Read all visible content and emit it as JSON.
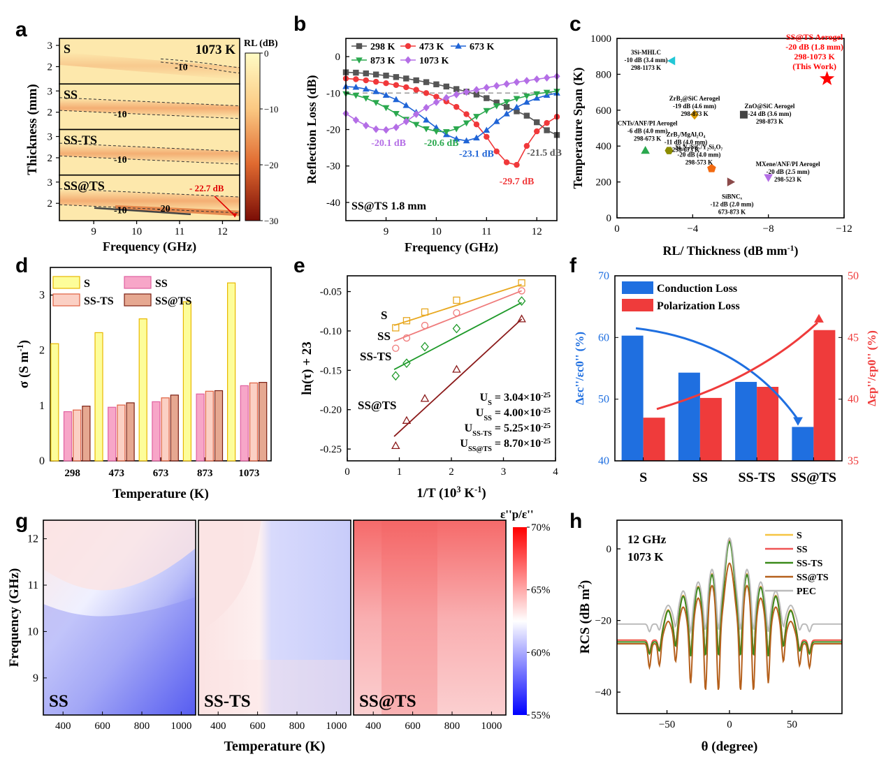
{
  "chart_data": [
    {
      "panel": "a",
      "type": "heatmap",
      "xlabel": "Frequency (GHz)",
      "ylabel": "Thickness (mm)",
      "xticks": [
        "9",
        "10",
        "11",
        "12"
      ],
      "xlim": [
        8.2,
        12.4
      ],
      "yticks": [
        "2",
        "3"
      ],
      "colorbar": {
        "title": "RL (dB)",
        "ticks": [
          "0",
          "−10",
          "−20",
          "−30"
        ],
        "range": [
          -30,
          0
        ]
      },
      "subplots": [
        {
          "name": "S",
          "corner": "1073 K",
          "contour": "-10"
        },
        {
          "name": "SS",
          "contour": "-10"
        },
        {
          "name": "SS-TS",
          "contour": "-10"
        },
        {
          "name": "SS@TS",
          "contour": "-10",
          "contour2": "-20",
          "annotation": "- 22.7 dB"
        }
      ]
    },
    {
      "panel": "b",
      "type": "line",
      "xlabel": "Frequency (GHz)",
      "ylabel": "Reflection Loss (dB)",
      "xlim": [
        8.2,
        12.4
      ],
      "ylim": [
        -45,
        5
      ],
      "xticks": [
        "9",
        "10",
        "11",
        "12"
      ],
      "yticks": [
        "0",
        "-10",
        "-20",
        "-30",
        "-40"
      ],
      "note": "SS@TS 1.8 mm",
      "x": [
        8.2,
        8.4,
        8.6,
        8.8,
        9.0,
        9.2,
        9.4,
        9.6,
        9.8,
        10.0,
        10.2,
        10.4,
        10.6,
        10.8,
        11.0,
        11.2,
        11.4,
        11.6,
        11.8,
        12.0,
        12.2,
        12.4
      ],
      "series": [
        {
          "name": "298 K",
          "color": "#555555",
          "marker": "square",
          "values": [
            -4.3,
            -4.4,
            -4.6,
            -4.9,
            -5.2,
            -5.6,
            -6.0,
            -6.5,
            -7.0,
            -7.6,
            -8.2,
            -8.9,
            -9.6,
            -10.4,
            -11.4,
            -12.6,
            -13.8,
            -15.0,
            -16.2,
            -18.0,
            -20.2,
            -21.5
          ]
        },
        {
          "name": "473 K",
          "color": "#f0383a",
          "marker": "circle",
          "values": [
            -6.0,
            -6.2,
            -6.5,
            -6.9,
            -7.3,
            -7.8,
            -8.4,
            -9.1,
            -10.0,
            -11.0,
            -12.3,
            -13.8,
            -15.8,
            -18.6,
            -22.0,
            -26.0,
            -29.0,
            -29.7,
            -24.5,
            -20.5,
            -18.2,
            -16.5
          ]
        },
        {
          "name": "673 K",
          "color": "#1f64d6",
          "marker": "triangle-up",
          "values": [
            -8.2,
            -8.4,
            -8.9,
            -9.6,
            -10.6,
            -11.8,
            -13.4,
            -15.3,
            -17.4,
            -19.5,
            -21.4,
            -22.6,
            -23.1,
            -22.3,
            -20.2,
            -17.8,
            -15.7,
            -13.9,
            -12.5,
            -11.4,
            -10.6,
            -10.0
          ]
        },
        {
          "name": "873 K",
          "color": "#2aa84e",
          "marker": "triangle-down",
          "values": [
            -10.2,
            -10.6,
            -11.4,
            -12.6,
            -14.0,
            -15.6,
            -17.2,
            -18.6,
            -19.8,
            -20.5,
            -20.6,
            -19.8,
            -18.2,
            -16.4,
            -14.8,
            -13.5,
            -12.4,
            -11.5,
            -10.8,
            -10.2,
            -9.8,
            -9.5
          ]
        },
        {
          "name": "1073 K",
          "color": "#b46ee6",
          "marker": "diamond",
          "values": [
            -15.6,
            -17.4,
            -18.9,
            -19.9,
            -20.1,
            -19.4,
            -17.8,
            -15.8,
            -14.0,
            -12.5,
            -11.3,
            -10.4,
            -9.7,
            -9.1,
            -8.5,
            -8.0,
            -7.5,
            -7.0,
            -6.6,
            -6.2,
            -5.8,
            -5.4
          ]
        }
      ],
      "labels": [
        {
          "text": "-20.1 dB",
          "color": "#b46ee6"
        },
        {
          "text": "-20.6 dB",
          "color": "#2aa84e"
        },
        {
          "text": "-23.1 dB",
          "color": "#1f64d6"
        },
        {
          "text": "-29.7 dB",
          "color": "#f0383a"
        },
        {
          "text": "-21.5 dB",
          "color": "#555555"
        }
      ]
    },
    {
      "panel": "c",
      "type": "scatter",
      "xlabel": "RL/ Thickness (dB mm",
      "xlabel_sup": "-1",
      "xlabel_end": ")",
      "ylabel": "Temperature Span (K)",
      "xlim": [
        0,
        -12
      ],
      "ylim": [
        0,
        1000
      ],
      "xticks": [
        "0",
        "−4",
        "−8",
        "−12"
      ],
      "yticks": [
        "0",
        "200",
        "400",
        "600",
        "800",
        "1000"
      ],
      "points": [
        {
          "x": -2.9,
          "y": 875,
          "color": "#22c7d6",
          "marker": "triangle-left",
          "label": [
            "3Si-MHLC",
            "-10 dB (3.4 mm)",
            "298-1173 K"
          ]
        },
        {
          "x": -4.1,
          "y": 575,
          "color": "#d99a00",
          "marker": "diamond",
          "label": [
            "ZrB₂@SiC Aerogel",
            "-19 dB (4.6 mm)",
            "298-873 K"
          ]
        },
        {
          "x": -6.7,
          "y": 575,
          "color": "#444444",
          "marker": "square",
          "label": [
            "ZnO@SiC Aerogel",
            "-24 dB (3.6 mm)",
            "298-873 K"
          ]
        },
        {
          "x": -1.5,
          "y": 375,
          "color": "#2aa84e",
          "marker": "triangle-up",
          "label": [
            "CNTs/ANF/PI Aerogel",
            "-6 dB (4.0 mm)",
            "298-673 K"
          ]
        },
        {
          "x": -2.75,
          "y": 375,
          "color": "#8c8c00",
          "marker": "hexagon",
          "label": [
            "ZrB₂/MgAl₂O₄",
            "-11 dB (4.0 mm)",
            "298-673 K"
          ]
        },
        {
          "x": -5.0,
          "y": 275,
          "color": "#f26a10",
          "marker": "pentagon",
          "label": [
            "Si₃N₄/SiC/Y₂Si₂O₇",
            "-20 dB (4.0 mm)",
            "298-573 K"
          ]
        },
        {
          "x": -6.0,
          "y": 200,
          "color": "#8b4a4a",
          "marker": "triangle-right",
          "label": [
            "SiBNCₓ",
            "-12 dB (2.0 mm)",
            "673-873 K"
          ]
        },
        {
          "x": -8.0,
          "y": 225,
          "color": "#b46ee6",
          "marker": "triangle-down",
          "label": [
            "MXene/ANF/PI Aerogel",
            "-20 dB (2.5 mm)",
            "298-523 K"
          ]
        },
        {
          "x": -11.1,
          "y": 775,
          "color": "#ff0000",
          "marker": "star",
          "label": [
            "SS@TS Aerogel",
            "-20 dB (1.8 mm)",
            "298-1073 K",
            "(This Work)"
          ]
        }
      ]
    },
    {
      "panel": "d",
      "type": "bar",
      "xlabel": "Temperature (K)",
      "ylabel": "σ (S m",
      "ylabel_sup": "-1",
      "ylabel_end": ")",
      "categories": [
        "298",
        "473",
        "673",
        "873",
        "1073"
      ],
      "ylim": [
        0,
        3.5
      ],
      "yticks": [
        "0",
        "1",
        "2",
        "3"
      ],
      "series": [
        {
          "name": "S",
          "color": "#fdfd9a",
          "edge": "#e8b800",
          "values": [
            2.12,
            2.32,
            2.57,
            2.88,
            3.22
          ]
        },
        {
          "name": "SS",
          "color": "#f7a6c8",
          "edge": "#e060a0",
          "values": [
            0.89,
            0.97,
            1.07,
            1.21,
            1.36
          ]
        },
        {
          "name": "SS-TS",
          "color": "#fbd0c4",
          "edge": "#e06040",
          "values": [
            0.92,
            1.01,
            1.14,
            1.26,
            1.41
          ]
        },
        {
          "name": "SS@TS",
          "color": "#e6a891",
          "edge": "#7a1e12",
          "values": [
            0.99,
            1.05,
            1.19,
            1.27,
            1.42
          ]
        }
      ]
    },
    {
      "panel": "e",
      "type": "scatter",
      "xlabel": "1/T (10",
      "xlabel_sup": "3",
      "xlabel_mid": " K",
      "xlabel_sup2": "-1",
      "xlabel_end": ")",
      "ylabel": "ln(τ) + 23",
      "xlim": [
        0,
        4
      ],
      "ylim": [
        -0.265,
        -0.03
      ],
      "xticks": [
        "0",
        "1",
        "2",
        "3",
        "4"
      ],
      "yticks": [
        "-0.05",
        "-0.10",
        "-0.15",
        "-0.20",
        "-0.25"
      ],
      "series": [
        {
          "name": "S",
          "color": "#e8a820",
          "marker": "square",
          "x": [
            0.93,
            1.14,
            1.49,
            2.1,
            3.35
          ],
          "y": [
            -0.096,
            -0.087,
            -0.076,
            -0.061,
            -0.039
          ],
          "fit": [
            [
              0.9,
              -0.093
            ],
            [
              3.35,
              -0.041
            ]
          ]
        },
        {
          "name": "SS",
          "color": "#ef7b7b",
          "marker": "circle",
          "x": [
            0.93,
            1.14,
            1.49,
            2.1,
            3.35
          ],
          "y": [
            -0.122,
            -0.109,
            -0.093,
            -0.077,
            -0.049
          ],
          "fit": [
            [
              0.9,
              -0.113
            ],
            [
              3.35,
              -0.049
            ]
          ]
        },
        {
          "name": "SS-TS",
          "color": "#1f9a2a",
          "marker": "diamond",
          "x": [
            0.93,
            1.14,
            1.49,
            2.1,
            3.35
          ],
          "y": [
            -0.157,
            -0.141,
            -0.12,
            -0.097,
            -0.062
          ],
          "fit": [
            [
              0.9,
              -0.149
            ],
            [
              3.35,
              -0.064
            ]
          ]
        },
        {
          "name": "SS@TS",
          "color": "#8b1a1a",
          "marker": "triangle-up",
          "x": [
            0.93,
            1.14,
            1.49,
            2.1,
            3.35
          ],
          "y": [
            -0.246,
            -0.214,
            -0.186,
            -0.149,
            -0.085
          ],
          "fit": [
            [
              0.9,
              -0.234
            ],
            [
              3.35,
              -0.085
            ]
          ]
        }
      ],
      "annotations": [
        {
          "sym": "U",
          "sub": "S",
          "value": " = 3.04×10",
          "exp": "-25"
        },
        {
          "sym": "U",
          "sub": "SS",
          "value": " = 4.00×10",
          "exp": "-25"
        },
        {
          "sym": "U",
          "sub": "SS-TS",
          "value": " = 5.25×10",
          "exp": "-25"
        },
        {
          "sym": "U",
          "sub": "SS@TS",
          "value": " = 8.70×10",
          "exp": "-25"
        }
      ]
    },
    {
      "panel": "f",
      "type": "bar",
      "categories": [
        "S",
        "SS",
        "SS-TS",
        "SS@TS"
      ],
      "left_axis": {
        "label": "Δεc''/εc0'' (%)",
        "lim": [
          40,
          70
        ],
        "ticks": [
          "40",
          "50",
          "60",
          "70"
        ],
        "color": "#1f6fe0"
      },
      "right_axis": {
        "label": "Δεp''/εp0'' (%)",
        "lim": [
          35,
          50
        ],
        "ticks": [
          "35",
          "40",
          "45",
          "50"
        ],
        "color": "#ef3b3b"
      },
      "series": [
        {
          "name": "Conduction Loss",
          "color": "#1f6fe0",
          "axis": "left",
          "values": [
            60.3,
            54.3,
            52.8,
            45.5
          ]
        },
        {
          "name": "Polarization Loss",
          "color": "#ef3b3b",
          "axis": "right",
          "values": [
            38.5,
            40.1,
            41.0,
            45.6
          ]
        }
      ]
    },
    {
      "panel": "g",
      "type": "heatmap",
      "xlabel": "Temperature (K)",
      "ylabel": "Frequency (GHz)",
      "xticks": [
        "400",
        "600",
        "800",
        "1000"
      ],
      "xlim": [
        300,
        1073
      ],
      "yticks": [
        "9",
        "10",
        "11",
        "12"
      ],
      "ylim": [
        8.2,
        12.4
      ],
      "colorbar": {
        "title": "ε''p/ε''",
        "ticks": [
          "70%",
          "65%",
          "60%",
          "55%"
        ],
        "range": [
          55,
          70
        ]
      },
      "subplots": [
        "SS",
        "SS-TS",
        "SS@TS"
      ]
    },
    {
      "panel": "h",
      "type": "line",
      "xlabel": "θ (degree)",
      "ylabel": "RCS (dB m",
      "ylabel_sup": "2",
      "ylabel_end": ")",
      "xlim": [
        -90,
        90
      ],
      "ylim": [
        -46,
        8
      ],
      "xticks": [
        "−50",
        "0",
        "50"
      ],
      "yticks": [
        "0",
        "−20",
        "−40"
      ],
      "note": [
        "12 GHz",
        "1073 K"
      ],
      "series": [
        {
          "name": "S",
          "color": "#f5c542",
          "peak": 2.5,
          "floor": -25.5
        },
        {
          "name": "SS",
          "color": "#ef5555",
          "peak": 2.2,
          "floor": -25.5
        },
        {
          "name": "SS-TS",
          "color": "#3a8a1a",
          "peak": 2.0,
          "floor": -26.0
        },
        {
          "name": "SS@TS",
          "color": "#b5601c",
          "peak": -4.0,
          "floor": -26.5
        },
        {
          "name": "PEC",
          "color": "#bbbbbb",
          "peak": 3.0,
          "floor": -21.0
        }
      ]
    }
  ]
}
